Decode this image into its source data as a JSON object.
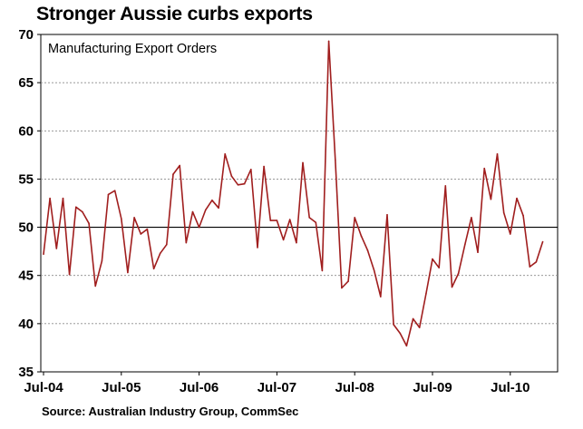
{
  "chart_data": {
    "type": "line",
    "title": "Stronger Aussie curbs exports",
    "series_label": "Manufacturing Export Orders",
    "source": "Source: Australian Industry Group, CommSec",
    "ylim": [
      35,
      70
    ],
    "yticks": [
      35,
      40,
      45,
      50,
      55,
      60,
      65,
      70
    ],
    "reference_line": 50,
    "grid": "horizontal dashed",
    "x_tick_labels": [
      "Jul-04",
      "Jul-05",
      "Jul-06",
      "Jul-07",
      "Jul-08",
      "Jul-09",
      "Jul-10"
    ],
    "x_start": "Jul-04",
    "series": [
      {
        "name": "Manufacturing Export Orders",
        "color": "#a01e1e",
        "values": [
          47.2,
          53.0,
          47.8,
          53.0,
          45.1,
          52.1,
          51.6,
          50.4,
          43.9,
          46.5,
          53.4,
          53.8,
          50.9,
          45.3,
          51.0,
          49.3,
          49.8,
          45.7,
          47.3,
          48.2,
          55.5,
          56.4,
          48.4,
          51.6,
          50.0,
          51.8,
          52.8,
          52.0,
          57.6,
          55.3,
          54.4,
          54.5,
          56.0,
          47.9,
          56.3,
          50.7,
          50.7,
          48.7,
          50.8,
          48.4,
          56.7,
          51.0,
          50.5,
          45.5,
          69.3,
          57.0,
          43.7,
          44.4,
          51.0,
          49.1,
          47.6,
          45.5,
          42.8,
          51.3,
          39.9,
          39.0,
          37.7,
          40.5,
          39.6,
          43.1,
          46.7,
          45.8,
          54.3,
          43.8,
          45.2,
          48.2,
          51.0,
          47.4,
          56.1,
          52.9,
          57.6,
          51.5,
          49.3,
          53.0,
          51.2,
          45.9,
          46.4,
          48.5
        ]
      }
    ]
  }
}
